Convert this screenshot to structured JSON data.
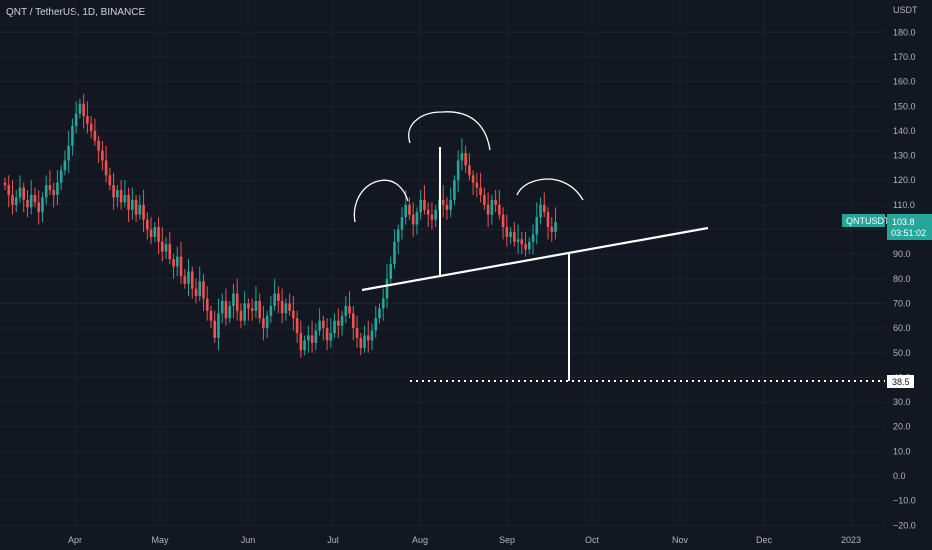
{
  "title": "QNT / TetherUS, 1D, BINANCE",
  "colors": {
    "background": "#131722",
    "up": "#26a69a",
    "down": "#ef5350",
    "grid": "#1e222d",
    "annotation": "#ffffff",
    "price_badge": "#26a69a"
  },
  "chart_data": {
    "type": "candlestick",
    "title": "QNT / TetherUS, 1D, BINANCE",
    "x_axis_labels": [
      "Apr",
      "May",
      "Jun",
      "Jul",
      "Aug",
      "Sep",
      "Oct",
      "Nov",
      "Dec",
      "2023"
    ],
    "y_axis_unit": "USDT",
    "y_ticks": [
      180.0,
      170.0,
      160.0,
      150.0,
      140.0,
      130.0,
      120.0,
      110.0,
      100.0,
      90.0,
      80.0,
      70.0,
      60.0,
      50.0,
      40.0,
      30.0,
      20.0,
      10.0,
      0.0,
      -10.0,
      -20.0
    ],
    "y_tick_labels": [
      "180.0",
      "170.0",
      "160.0",
      "150.0",
      "140.0",
      "130.0",
      "120.0",
      "110.0",
      "100.0",
      "90.0",
      "80.0",
      "70.0",
      "60.0",
      "50.0",
      "40.0",
      "30.0",
      "20.0",
      "10.0",
      "0.0",
      "−10.0",
      "−20.0"
    ],
    "ylim": [
      -21,
      188
    ],
    "grid": true,
    "symbol": "QNTUSDT",
    "last_price": 103.8,
    "last_price_label": "103.8",
    "countdown": "03:51:02",
    "target_price": 38.5,
    "target_price_label": "38.5",
    "series_closes": [
      118,
      114,
      110,
      113,
      117,
      112,
      109,
      114,
      111,
      107,
      113,
      118,
      116,
      114,
      119,
      124,
      128,
      134,
      142,
      147,
      151,
      146,
      143,
      140,
      136,
      132,
      128,
      122,
      118,
      113,
      116,
      111,
      114,
      108,
      112,
      106,
      110,
      104,
      100,
      97,
      101,
      95,
      91,
      94,
      88,
      85,
      89,
      81,
      78,
      83,
      76,
      73,
      79,
      72,
      67,
      63,
      56,
      66,
      71,
      64,
      69,
      74,
      67,
      63,
      70,
      68,
      67,
      71,
      64,
      60,
      65,
      69,
      74,
      71,
      66,
      70,
      67,
      64,
      58,
      51,
      55,
      57,
      54,
      59,
      63,
      60,
      55,
      58,
      63,
      61,
      65,
      69,
      66,
      60,
      56,
      52,
      57,
      55,
      59,
      64,
      68,
      72,
      80,
      86,
      95,
      100,
      105,
      110,
      106,
      102,
      107,
      112,
      108,
      106,
      104,
      108,
      112,
      110,
      108,
      112,
      120,
      128,
      131,
      126,
      122,
      119,
      117,
      114,
      110,
      106,
      112,
      110,
      106,
      101,
      97,
      99,
      95,
      96,
      94,
      92,
      95,
      98,
      105,
      110,
      107,
      101,
      99,
      103
    ]
  }
}
